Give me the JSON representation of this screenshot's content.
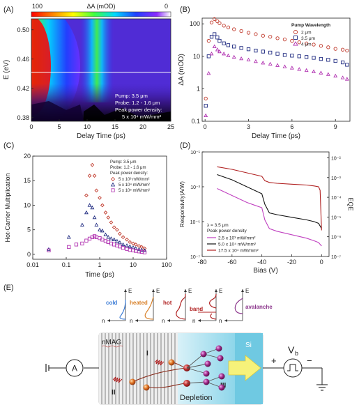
{
  "panels": {
    "a": "(A)",
    "b": "(B)",
    "c": "(C)",
    "d": "(D)",
    "e": "(E)"
  },
  "chart_data": [
    {
      "type": "heatmap",
      "panel": "(A)",
      "colorbar": {
        "label": "ΔA (mOD)",
        "min_label": "0",
        "max_label": "100",
        "colors": [
          "#ffffff",
          "#8b2cff",
          "#2040ff",
          "#00d8ff",
          "#40ff40",
          "#ffff00",
          "#ff8000",
          "#ff0000"
        ]
      },
      "xlabel": "Delay Time (ps)",
      "ylabel": "E (eV)",
      "xlim": [
        0,
        25
      ],
      "ylim": [
        0.375,
        0.515
      ],
      "xticks": [
        "0",
        "5",
        "10",
        "15",
        "20",
        "25"
      ],
      "yticks": [
        "0.38",
        "0.42",
        "0.46",
        "0.50"
      ],
      "ytick_values": [
        0.38,
        0.42,
        0.46,
        0.5
      ],
      "cut_line_E": 0.442,
      "annotation": [
        "Pump: 3.5 μm",
        "Probe: 1.2 - 1.6 μm",
        "Peak power density:",
        "5 x 10⁴ mW/mm²"
      ]
    },
    {
      "type": "scatter",
      "panel": "(B)",
      "xlabel": "Delay Time (ps)",
      "ylabel": "ΔA (mOD)",
      "xlim": [
        -0.2,
        10
      ],
      "ylim_log": [
        0.1,
        150
      ],
      "log_y": true,
      "xticks": [
        "0",
        "3",
        "6",
        "9"
      ],
      "xtick_values": [
        0,
        3,
        6,
        9
      ],
      "yticks": [
        "0.1",
        "1",
        "10",
        "100"
      ],
      "ytick_values": [
        0.1,
        1,
        10,
        100
      ],
      "legend_title": "Pump Wavelength",
      "series": [
        {
          "name": "2 μm",
          "marker": "circle",
          "color": "#c0392b",
          "x": [
            0.05,
            0.25,
            0.45,
            0.65,
            0.85,
            1.0,
            1.3,
            1.6,
            2.0,
            2.5,
            3.0,
            3.5,
            4.0,
            4.5,
            5.0,
            5.5,
            6.0,
            6.5,
            7.0,
            7.5,
            8.0,
            8.5,
            9.0,
            9.5,
            9.8
          ],
          "y": [
            0.5,
            30,
            110,
            140,
            120,
            105,
            88,
            78,
            68,
            60,
            53,
            48,
            43,
            40,
            36,
            33,
            30,
            27,
            25,
            23,
            21,
            19,
            17,
            16,
            15
          ]
        },
        {
          "name": "3.5 μm",
          "marker": "square",
          "color": "#1f2a80",
          "x": [
            0.05,
            0.25,
            0.45,
            0.65,
            0.85,
            1.0,
            1.3,
            1.6,
            2.0,
            2.5,
            3.0,
            3.5,
            4.0,
            4.5,
            5.0,
            5.5,
            6.0,
            6.5,
            7.0,
            7.5,
            8.0,
            8.5,
            9.0,
            9.5,
            9.8
          ],
          "y": [
            0.3,
            10,
            40,
            48,
            38,
            30,
            25,
            22,
            20,
            18,
            16.5,
            15,
            14,
            13,
            12,
            11,
            10.5,
            10,
            9.5,
            9,
            8.3,
            7.8,
            7.2,
            6.5,
            5.5
          ]
        },
        {
          "name": "4 μm",
          "marker": "triangle",
          "color": "#b030b0",
          "x": [
            0.05,
            0.25,
            0.45,
            0.65,
            0.85,
            1.0,
            1.3,
            1.6,
            2.0,
            2.5,
            3.0,
            3.5,
            4.0,
            4.5,
            5.0,
            5.5,
            6.0,
            6.5,
            7.0,
            7.5,
            8.0,
            8.5,
            9.0,
            9.5,
            9.8
          ],
          "y": [
            0.15,
            3,
            12,
            20,
            16,
            14,
            12,
            10.5,
            9.5,
            8.5,
            7.8,
            7,
            6.3,
            5.8,
            5.3,
            4.8,
            4.4,
            4,
            3.7,
            3.4,
            3.1,
            2.8,
            2.5,
            2.2,
            2.0
          ]
        }
      ]
    },
    {
      "type": "scatter",
      "panel": "(C)",
      "xlabel": "Time (ps)",
      "ylabel": "Hot-Carrier Multiplication",
      "log_x": true,
      "xlim_log": [
        0.01,
        100
      ],
      "ylim": [
        -1,
        20
      ],
      "xticks": [
        "0.01",
        "0.1",
        "1",
        "10",
        "100"
      ],
      "xtick_values": [
        0.01,
        0.1,
        1,
        10,
        100
      ],
      "yticks": [
        "0",
        "5",
        "10",
        "15",
        "20"
      ],
      "ytick_values": [
        0,
        5,
        10,
        15,
        20
      ],
      "annotation": [
        "Pump:  3.5 μm",
        "Probe:  1.2 - 1.6 μm",
        "Peak power density:"
      ],
      "series": [
        {
          "name": "5 x 10³ mW/mm²",
          "marker": "diamond",
          "color": "#c0392b",
          "x": [
            0.4,
            0.5,
            0.6,
            0.7,
            0.8,
            1.0,
            1.2,
            1.5,
            1.8,
            2.2,
            2.7,
            3.3,
            4,
            5,
            6.5,
            8,
            10,
            12,
            15,
            18,
            22
          ],
          "y": [
            12,
            16,
            18.2,
            16,
            13,
            11.5,
            10,
            8.5,
            7.5,
            6.5,
            5.5,
            5,
            4.2,
            3.5,
            3,
            2.5,
            2.2,
            2,
            1.7,
            1.5,
            1.2
          ]
        },
        {
          "name": "5 x 10⁴ mW/mm²",
          "marker": "triangle",
          "color": "#1f2a80",
          "x": [
            0.03,
            0.12,
            0.3,
            0.4,
            0.5,
            0.6,
            0.7,
            0.8,
            1.0,
            1.2,
            1.5,
            1.8,
            2.2,
            2.7,
            3.3,
            4,
            5,
            6.5,
            8,
            10,
            12,
            15,
            18,
            22
          ],
          "y": [
            1,
            3.5,
            6,
            8.5,
            10,
            9.5,
            7.5,
            6,
            5,
            4.8,
            4,
            3.5,
            3.2,
            3,
            2.7,
            2.4,
            2,
            1.8,
            1.6,
            1.4,
            1.2,
            1,
            0.9,
            0.8
          ]
        },
        {
          "name": "5 x 10⁵ mW/mm²",
          "marker": "square",
          "color": "#b030b0",
          "x": [
            0.03,
            0.12,
            0.2,
            0.3,
            0.4,
            0.5,
            0.6,
            0.7,
            0.8,
            1.0,
            1.2,
            1.5,
            1.8,
            2.2,
            2.7,
            3.3,
            4,
            5,
            6.5,
            8,
            10,
            12,
            15,
            18,
            22
          ],
          "y": [
            0.8,
            1.5,
            2,
            2.2,
            2.8,
            3.2,
            3.5,
            3.7,
            3.5,
            3.3,
            3,
            2.7,
            2.5,
            2.2,
            2,
            1.8,
            1.6,
            1.3,
            1.1,
            0.9,
            0.8,
            0.7,
            0.6,
            0.5,
            0.4
          ]
        }
      ]
    },
    {
      "type": "line",
      "panel": "(D)",
      "xlabel": "Bias (V)",
      "ylabel": "Responsivity(A/W)",
      "y2label": "EQE",
      "xlim": [
        -80,
        5
      ],
      "log_y": true,
      "ylim_log_exp": [
        -7,
        -1
      ],
      "y2lim_log_exp": [
        -7,
        -1.7
      ],
      "xticks": [
        "-80",
        "-60",
        "-40",
        "-20",
        "0"
      ],
      "xtick_values": [
        -80,
        -60,
        -40,
        -20,
        0
      ],
      "yticks": [
        "10⁻⁷",
        "10⁻⁵",
        "10⁻³",
        "10⁻¹"
      ],
      "ytick_exps": [
        -7,
        -5,
        -3,
        -1
      ],
      "y2ticks": [
        "10⁻⁷",
        "10⁻⁶",
        "10⁻⁵",
        "10⁻⁴",
        "10⁻³",
        "10⁻²"
      ],
      "y2tick_exps": [
        -7,
        -6,
        -5,
        -4,
        -3,
        -2
      ],
      "annotation": [
        "λ = 3.5 μm",
        "Peak power density"
      ],
      "series": [
        {
          "name": "2.5 x 10³ mW/mm²",
          "color": "#c040c0",
          "x": [
            -70,
            -60,
            -50,
            -45,
            -40,
            -38,
            -35,
            -30,
            -20,
            -10,
            -5,
            -2,
            0
          ],
          "y_exp": [
            -3.1,
            -3.5,
            -3.9,
            -4.05,
            -4.2,
            -4.9,
            -5.4,
            -5.55,
            -5.75,
            -5.95,
            -6.1,
            -6.2,
            -6.4
          ]
        },
        {
          "name": "5.0 x 10⁴ mW/mm²",
          "color": "#111111",
          "x": [
            -70,
            -60,
            -50,
            -45,
            -40,
            -38,
            -35,
            -30,
            -20,
            -10,
            -5,
            -2,
            0
          ],
          "y_exp": [
            -2.3,
            -2.6,
            -3.0,
            -3.2,
            -3.4,
            -4.0,
            -4.5,
            -4.6,
            -4.75,
            -4.9,
            -5.0,
            -5.1,
            -5.4
          ]
        },
        {
          "name": "17.5 x 10⁴ mW/mm²",
          "color": "#b02020",
          "x": [
            -70,
            -60,
            -50,
            -45,
            -40,
            -38,
            -35,
            -30,
            -20,
            -10,
            -5,
            -2,
            -1,
            0
          ],
          "y_exp": [
            -1.85,
            -2.0,
            -2.2,
            -2.3,
            -2.4,
            -2.65,
            -2.75,
            -2.8,
            -2.85,
            -2.9,
            -2.95,
            -3.0,
            -3.2,
            -5.5
          ]
        }
      ]
    }
  ],
  "diagram": {
    "distributions": [
      {
        "label": "cold",
        "color": "#3a7bd5"
      },
      {
        "label": "heated",
        "color": "#d9822b"
      },
      {
        "label": "hot",
        "color": "#b02020"
      },
      {
        "label": "band",
        "color": "#b02020"
      },
      {
        "label": "avalanche",
        "color": "#8e3a8e"
      }
    ],
    "axis_e": "E",
    "axis_n": "n",
    "nmag_label": "nMAG",
    "si_label": "Si",
    "depletion_label": "Depletion",
    "ammeter_label": "A",
    "voltage_label": "V",
    "voltage_sub": "b",
    "plus": "+",
    "minus": "−",
    "region_labels": [
      "I",
      "II",
      "III"
    ]
  }
}
